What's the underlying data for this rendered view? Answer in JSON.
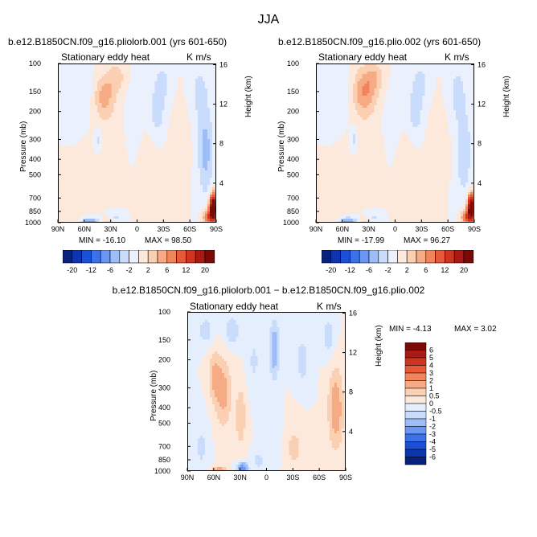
{
  "figure": {
    "title": "JJA"
  },
  "palette": {
    "abs": [
      "#08207e",
      "#0c35b0",
      "#1a4fd6",
      "#3b72ea",
      "#6a97f3",
      "#9dbdf9",
      "#cadcfc",
      "#eaf1fd",
      "#fde9db",
      "#fbcfb2",
      "#f7ab84",
      "#f2845c",
      "#e8593a",
      "#cf3421",
      "#a81a12",
      "#7a0a06"
    ],
    "diff": [
      "#08207e",
      "#0c35b0",
      "#1a4fd6",
      "#3b72ea",
      "#6a97f3",
      "#9dbdf9",
      "#cadcfc",
      "#e4eefc",
      "#fde9db",
      "#fbcfb2",
      "#f7ab84",
      "#f2845c",
      "#e8593a",
      "#cf3421",
      "#a81a12",
      "#7a0a06"
    ]
  },
  "chart_data": [
    {
      "type": "heatmap",
      "title": "b.e12.B1850CN.f09_g16.pliolorb.001 (yrs 601-650)",
      "subtitle_left": "Stationary eddy heat",
      "subtitle_right": "K m/s",
      "xlabel": "",
      "ylabel": "Pressure (mb)",
      "ylabel_right": "Height (km)",
      "x_ticks": [
        "90N",
        "60N",
        "30N",
        "0",
        "30S",
        "60S",
        "90S"
      ],
      "x_tick_values": [
        90,
        60,
        30,
        0,
        -30,
        -60,
        -90
      ],
      "y_ticks": [
        100,
        150,
        200,
        300,
        400,
        500,
        700,
        850,
        1000
      ],
      "height_ticks": [
        4,
        8,
        12,
        16
      ],
      "xlim": [
        90,
        -90
      ],
      "ylim": [
        1000,
        100
      ],
      "min_label": "MIN = -16.10",
      "max_label": "MAX = 98.50",
      "features": [
        {
          "lat": 38,
          "p": 160,
          "sx": 9,
          "sy": 0.22,
          "v": 5
        },
        {
          "lat": 24,
          "p": 120,
          "sx": 7,
          "sy": 0.15,
          "v": 3
        },
        {
          "lat": 45,
          "p": 300,
          "sx": 3,
          "sy": 0.12,
          "v": -3
        },
        {
          "lat": 58,
          "p": 150,
          "sx": 8,
          "sy": 0.25,
          "v": -1.5
        },
        {
          "lat": 30,
          "p": 350,
          "sx": 12,
          "sy": 0.3,
          "v": 1.5
        },
        {
          "lat": 5,
          "p": 250,
          "sx": 8,
          "sy": 0.4,
          "v": -1.2
        },
        {
          "lat": -22,
          "p": 200,
          "sx": 7,
          "sy": 0.3,
          "v": -3
        },
        {
          "lat": -28,
          "p": 130,
          "sx": 6,
          "sy": 0.18,
          "v": -2.5
        },
        {
          "lat": -12,
          "p": 450,
          "sx": 10,
          "sy": 0.4,
          "v": 1.5
        },
        {
          "lat": -45,
          "p": 350,
          "sx": 8,
          "sy": 0.35,
          "v": 1.5
        },
        {
          "lat": -77,
          "p": 350,
          "sx": 6,
          "sy": 0.45,
          "v": -5
        },
        {
          "lat": -70,
          "p": 150,
          "sx": 6,
          "sy": 0.25,
          "v": -3
        },
        {
          "lat": -86,
          "p": 800,
          "sx": 3,
          "sy": 0.13,
          "v": 30
        },
        {
          "lat": -80,
          "p": 920,
          "sx": 4,
          "sy": 0.08,
          "v": 10
        },
        {
          "lat": 55,
          "p": 990,
          "sx": 8,
          "sy": 0.05,
          "v": -8
        },
        {
          "lat": 35,
          "p": 990,
          "sx": 5,
          "sy": 0.05,
          "v": 4
        },
        {
          "lat": 70,
          "p": 960,
          "sx": 12,
          "sy": 0.08,
          "v": 1.5
        },
        {
          "lat": 25,
          "p": 920,
          "sx": 6,
          "sy": 0.05,
          "v": -2.5
        }
      ]
    },
    {
      "type": "heatmap",
      "title": "b.e12.B1850CN.f09_g16.plio.002 (yrs 601-650)",
      "subtitle_left": "Stationary eddy heat",
      "subtitle_right": "K m/s",
      "xlabel": "",
      "ylabel": "Pressure (mb)",
      "ylabel_right": "Height (km)",
      "x_ticks": [
        "90N",
        "60N",
        "30N",
        "0",
        "30S",
        "60S",
        "90S"
      ],
      "x_tick_values": [
        90,
        60,
        30,
        0,
        -30,
        -60,
        -90
      ],
      "y_ticks": [
        100,
        150,
        200,
        300,
        400,
        500,
        700,
        850,
        1000
      ],
      "height_ticks": [
        4,
        8,
        12,
        16
      ],
      "xlim": [
        90,
        -90
      ],
      "ylim": [
        1000,
        100
      ],
      "min_label": "MIN = -17.99",
      "max_label": "MAX = 96.27",
      "features": [
        {
          "lat": 36,
          "p": 150,
          "sx": 10,
          "sy": 0.24,
          "v": 6
        },
        {
          "lat": 24,
          "p": 120,
          "sx": 7,
          "sy": 0.15,
          "v": 3
        },
        {
          "lat": 47,
          "p": 300,
          "sx": 3,
          "sy": 0.12,
          "v": -3
        },
        {
          "lat": 58,
          "p": 150,
          "sx": 8,
          "sy": 0.25,
          "v": -1.5
        },
        {
          "lat": 30,
          "p": 350,
          "sx": 12,
          "sy": 0.3,
          "v": 1.5
        },
        {
          "lat": 5,
          "p": 250,
          "sx": 8,
          "sy": 0.4,
          "v": -1.2
        },
        {
          "lat": -22,
          "p": 200,
          "sx": 7,
          "sy": 0.3,
          "v": -3
        },
        {
          "lat": -28,
          "p": 130,
          "sx": 6,
          "sy": 0.18,
          "v": -2.5
        },
        {
          "lat": -12,
          "p": 450,
          "sx": 10,
          "sy": 0.4,
          "v": 1.5
        },
        {
          "lat": -45,
          "p": 350,
          "sx": 8,
          "sy": 0.35,
          "v": 1.5
        },
        {
          "lat": -77,
          "p": 350,
          "sx": 6,
          "sy": 0.45,
          "v": -4
        },
        {
          "lat": -70,
          "p": 150,
          "sx": 6,
          "sy": 0.25,
          "v": -3
        },
        {
          "lat": -86,
          "p": 800,
          "sx": 3,
          "sy": 0.13,
          "v": 28
        },
        {
          "lat": -80,
          "p": 920,
          "sx": 4,
          "sy": 0.08,
          "v": 10
        },
        {
          "lat": 55,
          "p": 990,
          "sx": 8,
          "sy": 0.05,
          "v": -9
        },
        {
          "lat": 35,
          "p": 990,
          "sx": 5,
          "sy": 0.05,
          "v": 4
        },
        {
          "lat": 70,
          "p": 960,
          "sx": 12,
          "sy": 0.08,
          "v": 1.5
        },
        {
          "lat": 25,
          "p": 920,
          "sx": 6,
          "sy": 0.05,
          "v": -2.5
        }
      ]
    },
    {
      "type": "heatmap",
      "title": "b.e12.B1850CN.f09_g16.pliolorb.001 − b.e12.B1850CN.f09_g16.plio.002",
      "subtitle_left": "Stationary eddy heat",
      "subtitle_right": "K m/s",
      "xlabel": "",
      "ylabel": "Pressure (mb)",
      "ylabel_right": "Height (km)",
      "x_ticks": [
        "90N",
        "60N",
        "30N",
        "0",
        "30S",
        "60S",
        "90S"
      ],
      "x_tick_values": [
        90,
        60,
        30,
        0,
        -30,
        -60,
        -90
      ],
      "y_ticks": [
        100,
        150,
        200,
        300,
        400,
        500,
        700,
        850,
        1000
      ],
      "height_ticks": [
        4,
        8,
        12,
        16
      ],
      "xlim": [
        90,
        -90
      ],
      "ylim": [
        1000,
        100
      ],
      "min_label": "MIN =   -4.13",
      "max_label": "MAX =   3.02",
      "features": [
        {
          "lat": 50,
          "p": 320,
          "sx": 7,
          "sy": 0.35,
          "v": 1.2
        },
        {
          "lat": 60,
          "p": 250,
          "sx": 5,
          "sy": 0.25,
          "v": 1.0
        },
        {
          "lat": 30,
          "p": 450,
          "sx": 4,
          "sy": 0.3,
          "v": 1.0
        },
        {
          "lat": 40,
          "p": 130,
          "sx": 6,
          "sy": 0.15,
          "v": -1.0
        },
        {
          "lat": 70,
          "p": 130,
          "sx": 6,
          "sy": 0.15,
          "v": -0.8
        },
        {
          "lat": -8,
          "p": 170,
          "sx": 4,
          "sy": 0.3,
          "v": -1.5
        },
        {
          "lat": 15,
          "p": 200,
          "sx": 5,
          "sy": 0.3,
          "v": -0.6
        },
        {
          "lat": -40,
          "p": 200,
          "sx": 6,
          "sy": 0.3,
          "v": -0.7
        },
        {
          "lat": -78,
          "p": 400,
          "sx": 6,
          "sy": 0.4,
          "v": 1.5
        },
        {
          "lat": -70,
          "p": 140,
          "sx": 5,
          "sy": 0.2,
          "v": -0.8
        },
        {
          "lat": 55,
          "p": 990,
          "sx": 6,
          "sy": 0.05,
          "v": 1.5
        },
        {
          "lat": 28,
          "p": 960,
          "sx": 4,
          "sy": 0.06,
          "v": -3
        },
        {
          "lat": 10,
          "p": 850,
          "sx": 5,
          "sy": 0.1,
          "v": -0.7
        },
        {
          "lat": -30,
          "p": 700,
          "sx": 10,
          "sy": 0.3,
          "v": 0.6
        },
        {
          "lat": -10,
          "p": 600,
          "sx": 6,
          "sy": 0.3,
          "v": -0.5
        },
        {
          "lat": 75,
          "p": 700,
          "sx": 6,
          "sy": 0.3,
          "v": -0.6
        }
      ]
    }
  ],
  "colorbar_top": {
    "labels": [
      "-20",
      "-12",
      "-6",
      "-2",
      "2",
      "6",
      "12",
      "20"
    ]
  },
  "colorbar_diff": {
    "labels": [
      "6",
      "5",
      "4",
      "3",
      "2",
      "1",
      "0.5",
      "0",
      "-0.5",
      "-1",
      "-2",
      "-3",
      "-4",
      "-5",
      "-6"
    ]
  }
}
